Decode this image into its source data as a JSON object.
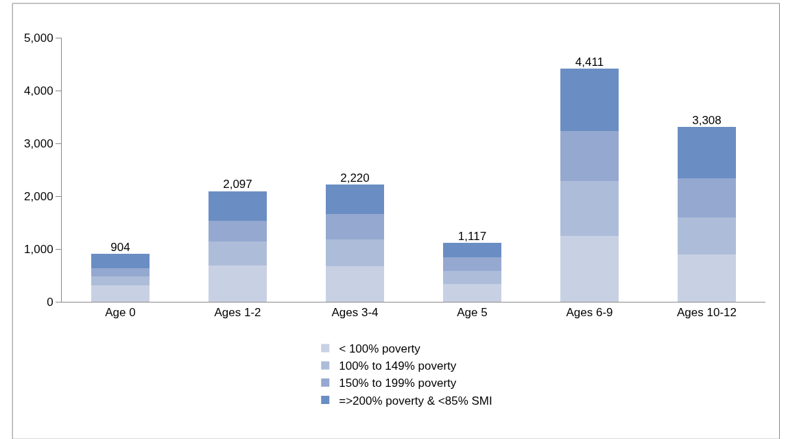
{
  "chart_data": {
    "type": "bar",
    "stacked": true,
    "categories": [
      "Age 0",
      "Ages 1-2",
      "Ages 3-4",
      "Age 5",
      "Ages 6-9",
      "Ages 10-12"
    ],
    "series": [
      {
        "name": "< 100% poverty",
        "color": "#c8d0e4",
        "values": [
          310,
          690,
          670,
          340,
          1250,
          890
        ]
      },
      {
        "name": "100% to 149% poverty",
        "color": "#adbdd9",
        "values": [
          170,
          450,
          510,
          240,
          1030,
          710
        ]
      },
      {
        "name": "150% to 199% poverty",
        "color": "#95a8d0",
        "values": [
          150,
          390,
          480,
          270,
          950,
          740
        ]
      },
      {
        "name": "=>200% poverty & <85% SMI",
        "color": "#6a8ec3",
        "values": [
          274,
          567,
          560,
          267,
          1181,
          968
        ]
      }
    ],
    "totals": [
      "904",
      "2,097",
      "2,220",
      "1,117",
      "4,411",
      "3,308"
    ],
    "ylim": [
      0,
      5000
    ],
    "yticks": [
      {
        "value": 0,
        "label": "0"
      },
      {
        "value": 1000,
        "label": "1,000"
      },
      {
        "value": 2000,
        "label": "2,000"
      },
      {
        "value": 3000,
        "label": "3,000"
      },
      {
        "value": 4000,
        "label": "4,000"
      },
      {
        "value": 5000,
        "label": "5,000"
      }
    ],
    "legend": "bottom"
  }
}
